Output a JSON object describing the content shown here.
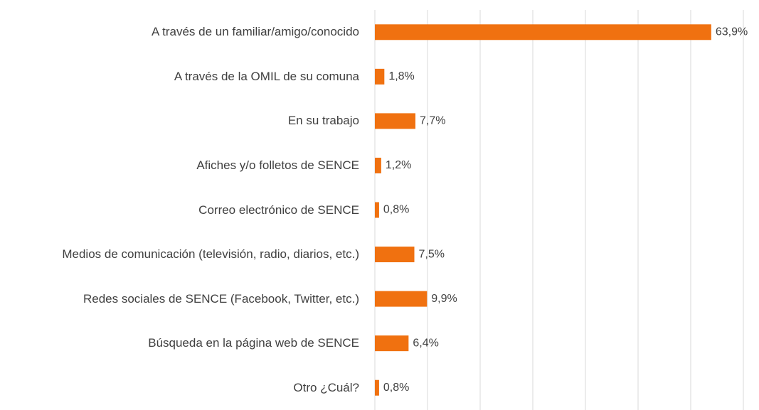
{
  "chart_data": {
    "type": "bar",
    "orientation": "horizontal",
    "categories": [
      "A través de un familiar/amigo/conocido",
      "A través de la OMIL de su comuna",
      "En su trabajo",
      "Afiches y/o folletos de SENCE",
      "Correo electrónico de SENCE",
      "Medios de comunicación (televisión, radio, diarios, etc.)",
      "Redes sociales de SENCE (Facebook, Twitter, etc.)",
      "Búsqueda en la página web de SENCE",
      "Otro ¿Cuál?"
    ],
    "values": [
      63.9,
      1.8,
      7.7,
      1.2,
      0.8,
      7.5,
      9.9,
      6.4,
      0.8
    ],
    "value_labels": [
      "63,9%",
      "1,8%",
      "7,7%",
      "1,2%",
      "0,8%",
      "7,5%",
      "9,9%",
      "6,4%",
      "0,8%"
    ],
    "color": "#f07110",
    "xlim": [
      0,
      70
    ],
    "xticks": [
      0,
      10,
      20,
      30,
      40,
      50,
      60,
      70
    ],
    "grid": true
  }
}
